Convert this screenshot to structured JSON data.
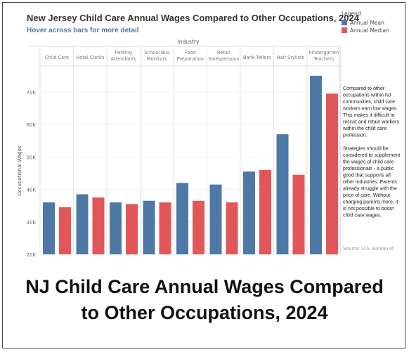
{
  "chart_data": {
    "type": "bar",
    "title": "New Jersey Child Care Annual Wages Compared to Other Occupations, 2024",
    "subtitle": "Hover across bars for more detail",
    "column_header": "Industry",
    "ylabel": "Occupational Wages",
    "ylim": [
      20000,
      78000
    ],
    "yticks": [
      20000,
      30000,
      40000,
      50000,
      60000,
      70000
    ],
    "ytick_labels": [
      "20K",
      "30K",
      "40K",
      "50K",
      "60K",
      "70K"
    ],
    "categories": [
      [
        "Child Care"
      ],
      [
        "Hotel Clerks"
      ],
      [
        "Parking",
        "Attendants"
      ],
      [
        "School Bus",
        "Monitors"
      ],
      [
        "Food",
        "Preparation"
      ],
      [
        "Retail",
        "Salespersons"
      ],
      [
        "Bank Tellers"
      ],
      [
        "Hair Stylists"
      ],
      [
        "Kindergarten",
        "Teachers"
      ]
    ],
    "series": [
      {
        "name": "Annual Mean",
        "color": "#4e79a7",
        "values": [
          36000,
          38500,
          36000,
          36500,
          42000,
          41500,
          45500,
          57000,
          75000
        ]
      },
      {
        "name": "Annual Median",
        "color": "#e15759",
        "values": [
          34500,
          37500,
          35500,
          36000,
          36500,
          36000,
          46000,
          44500,
          69500
        ]
      }
    ],
    "legend_title": "Legend",
    "legend_position": "top-right",
    "annotation": [
      "Compared to other",
      "occupations within NJ",
      "communities, child care",
      "workers earn low wages.",
      "This makes it difficult to",
      "recruit and retain workers",
      "within the child care",
      "profession.",
      "",
      "Strategies should be",
      "considered to supplement",
      "the wages of child care",
      "professionals - a public",
      "good that supports all",
      "other industries. Parents",
      "already struggle with the",
      "price of care. Without",
      "charging parents more, it",
      "is not possible to boost",
      "child care wages."
    ],
    "source": "Source: U.S. Bureau of"
  },
  "caption": {
    "line1": "NJ Child Care Annual Wages Compared",
    "line2": "to Other Occupations, 2024"
  }
}
